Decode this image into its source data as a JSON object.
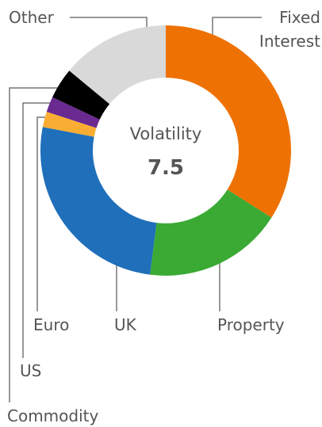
{
  "chart_data": {
    "type": "donut",
    "center_label": "Volatility",
    "center_value": 7.5,
    "categories": [
      "Fixed Interest",
      "Property",
      "UK",
      "Euro",
      "US",
      "Commodity",
      "Other"
    ],
    "values": [
      34,
      18,
      26,
      2,
      2,
      4,
      14
    ],
    "colors": [
      "#ee7203",
      "#3aaa35",
      "#1f6fba",
      "#f9ae33",
      "#6a2a8f",
      "#000000",
      "#d9d9d9"
    ]
  }
}
